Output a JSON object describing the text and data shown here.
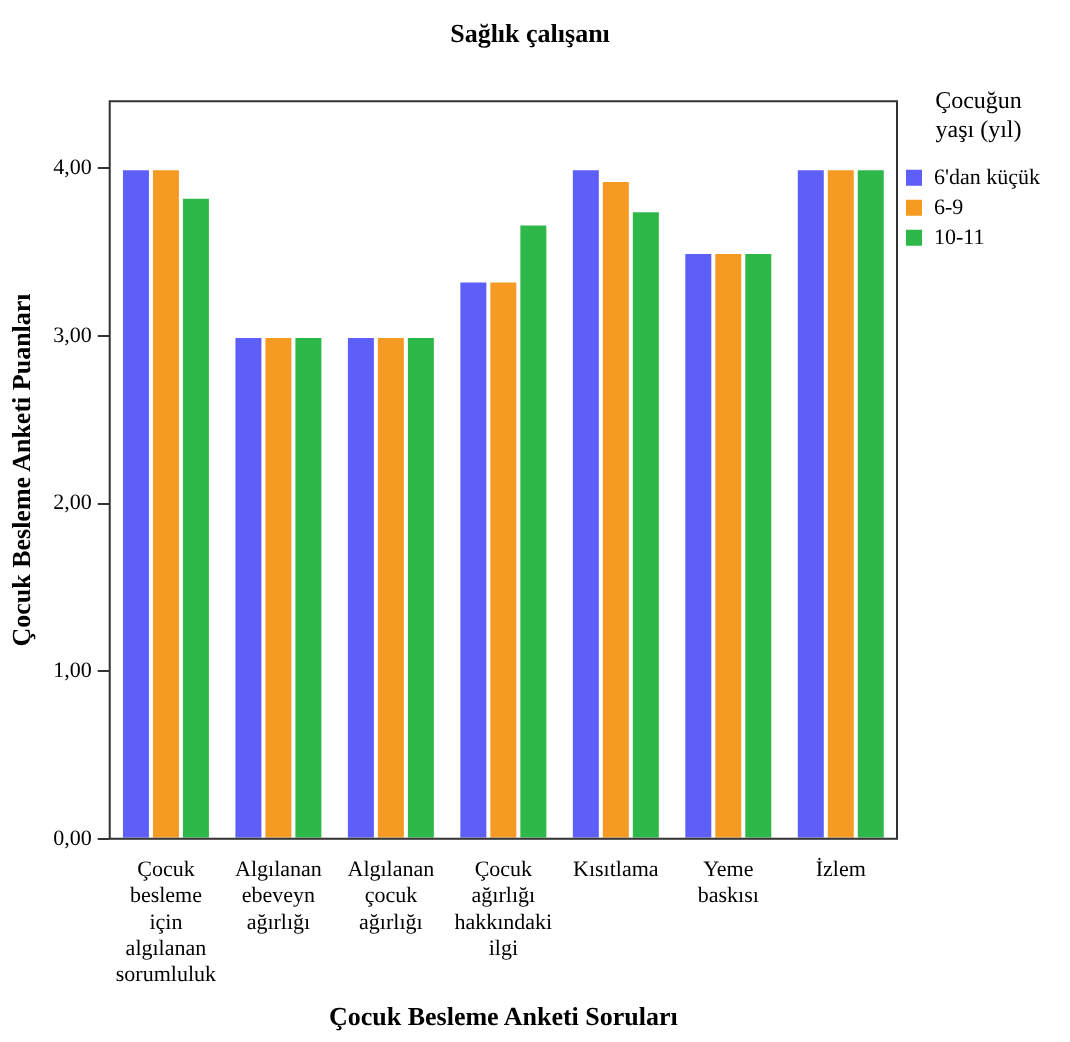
{
  "chart_data": {
    "type": "bar",
    "title": "Sağlık çalışanı",
    "xlabel": "Çocuk Besleme Anketi Soruları",
    "ylabel": "Çocuk Besleme Anketi Puanları",
    "legend_title": "Çocuğun yaşı (yıl)",
    "legend": "top right",
    "grid": false,
    "categories": [
      "Çocuk besleme için algılanan sorumluluk",
      "Algılanan ebeveyn ağırlığı",
      "Algılanan çocuk ağırlığı",
      "Çocuk ağırlığı hakkındaki ilgi",
      "Kısıtlama",
      "Yeme baskısı",
      "İzlem"
    ],
    "series": [
      {
        "name": "6'dan küçük",
        "color": "#5e5ef8",
        "values": [
          4,
          3,
          3,
          3.33,
          4,
          3.5,
          4
        ]
      },
      {
        "name": "6-9",
        "color": "#f59a23",
        "values": [
          4,
          3,
          3,
          3.33,
          3.93,
          3.5,
          4
        ]
      },
      {
        "name": "10-11",
        "color": "#2fb84a",
        "values": [
          3.83,
          3,
          3,
          3.67,
          3.75,
          3.5,
          4
        ]
      }
    ],
    "ylim": [
      0,
      4.4
    ],
    "yticks": [
      {
        "value": 0,
        "label": "0,00"
      },
      {
        "value": 1,
        "label": "1,00"
      },
      {
        "value": 2,
        "label": "2,00"
      },
      {
        "value": 3,
        "label": "3,00"
      },
      {
        "value": 4,
        "label": "4,00"
      }
    ]
  }
}
